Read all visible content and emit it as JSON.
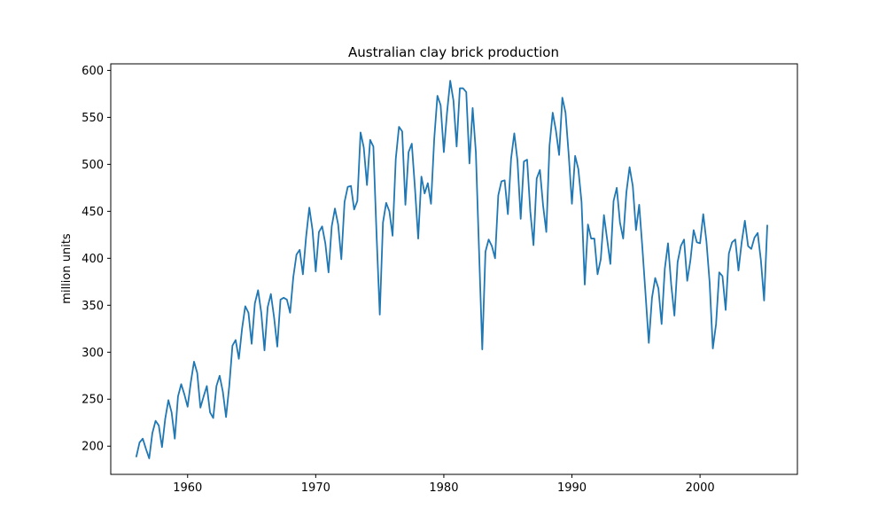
{
  "chart_data": {
    "type": "line",
    "title": "Australian clay brick production",
    "xlabel": "",
    "ylabel": "million units",
    "xlim": [
      1954.0,
      2007.6
    ],
    "ylim": [
      170,
      607
    ],
    "xticks": [
      1960,
      1970,
      1980,
      1990,
      2000
    ],
    "yticks": [
      200,
      250,
      300,
      350,
      400,
      450,
      500,
      550,
      600
    ],
    "grid": false,
    "legend": "none",
    "colors": {
      "line": "#1f77b4",
      "axes": "#000000",
      "background": "#ffffff"
    },
    "series": [
      {
        "x_start": 1956.0,
        "x_step": 0.25,
        "values": [
          189,
          204,
          208,
          197,
          187,
          214,
          227,
          222,
          199,
          229,
          249,
          236,
          208,
          253,
          266,
          255,
          242,
          268,
          290,
          278,
          241,
          253,
          264,
          236,
          230,
          264,
          275,
          258,
          231,
          264,
          307,
          313,
          293,
          325,
          349,
          342,
          309,
          352,
          366,
          342,
          302,
          348,
          362,
          337,
          306,
          356,
          358,
          356,
          342,
          380,
          404,
          409,
          383,
          423,
          454,
          430,
          386,
          428,
          434,
          416,
          385,
          434,
          453,
          436,
          399,
          460,
          476,
          477,
          452,
          461,
          534,
          518,
          478,
          526,
          519,
          425,
          340,
          438,
          459,
          450,
          424,
          506,
          540,
          535,
          457,
          513,
          522,
          474,
          421,
          487,
          469,
          480,
          458,
          527,
          573,
          563,
          513,
          555,
          589,
          568,
          519,
          581,
          581,
          577,
          501,
          560,
          513,
          408,
          303,
          407,
          420,
          413,
          400,
          467,
          482,
          483,
          447,
          506,
          533,
          504,
          442,
          503,
          505,
          450,
          414,
          485,
          494,
          456,
          428,
          520,
          555,
          536,
          510,
          571,
          555,
          510,
          458,
          509,
          495,
          460,
          372,
          436,
          421,
          421,
          383,
          399,
          446,
          420,
          394,
          461,
          475,
          438,
          421,
          470,
          497,
          477,
          430,
          457,
          411,
          361,
          310,
          358,
          379,
          368,
          330,
          389,
          416,
          372,
          339,
          396,
          413,
          420,
          376,
          398,
          430,
          417,
          416,
          447,
          418,
          374,
          304,
          330,
          385,
          381,
          345,
          405,
          417,
          420,
          387,
          417,
          440,
          413,
          410,
          422,
          427,
          398,
          355,
          435
        ]
      }
    ]
  }
}
